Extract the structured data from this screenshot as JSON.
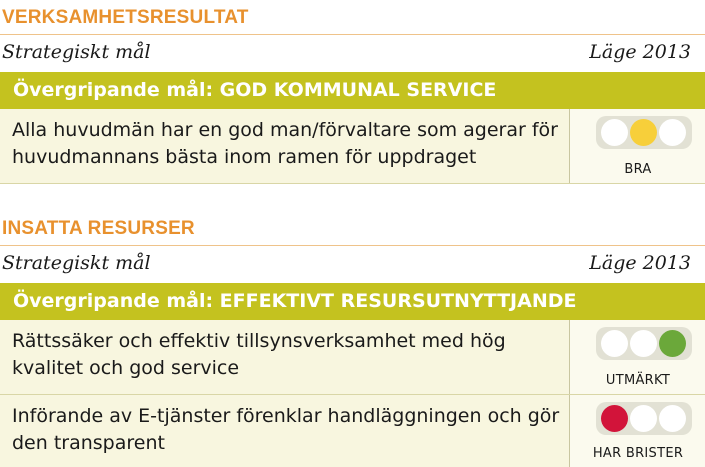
{
  "colors": {
    "heading": "#e8912e",
    "band": "#c4c21f",
    "yellow": "#f7cf3a",
    "green": "#6ba83a",
    "red": "#d2143a"
  },
  "section1": {
    "title": "VERKSAMHETSRESULTAT",
    "col_left": "Strategiskt mål",
    "col_right": "Läge 2013",
    "goal": "Övergripande mål: GOD KOMMUNAL SERVICE",
    "rows": [
      {
        "line1": "Alla huvudmän har en god man/förvaltare som agerar för",
        "line2": "huvudmannans bästa inom ramen för uppdraget",
        "status": "BRA",
        "light": "yellow"
      }
    ]
  },
  "section2": {
    "title": "INSATTA RESURSER",
    "col_left": "Strategiskt mål",
    "col_right": "Läge 2013",
    "goal": "Övergripande mål: EFFEKTIVT RESURSUTNYTTJANDE",
    "rows": [
      {
        "line1": "Rättssäker och effektiv tillsynsverksamhet med hög",
        "line2": "kvalitet och god service",
        "status": "UTMÄRKT",
        "light": "green"
      },
      {
        "line1": "Införande av E-tjänster förenklar handläggningen och gör",
        "line2": "den transparent",
        "status": "HAR BRISTER",
        "light": "red"
      }
    ]
  }
}
